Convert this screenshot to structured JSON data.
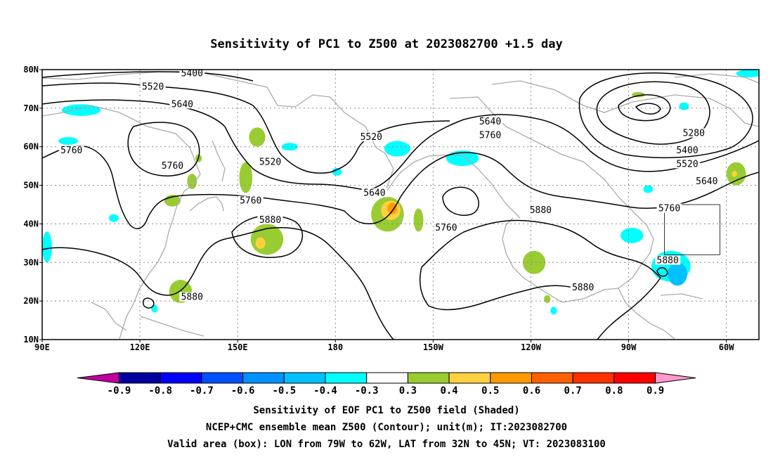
{
  "title": "Sensitivity of PC1 to Z500 at 2023082700 +1.5 day",
  "map": {
    "lon_range": [
      90,
      310
    ],
    "lat_range": [
      10,
      80
    ],
    "lat_labels": [
      "10N",
      "20N",
      "30N",
      "40N",
      "50N",
      "60N",
      "70N",
      "80N"
    ],
    "lon_labels": [
      "90E",
      "120E",
      "150E",
      "180",
      "150W",
      "120W",
      "90W",
      "60W"
    ],
    "grid": "dotted",
    "valid_box": {
      "lon_w": 281,
      "lon_e": 298,
      "lat_s": 32,
      "lat_n": 45
    }
  },
  "contour_labels": [
    {
      "text": "5400",
      "lon": 136,
      "lat": 79
    },
    {
      "text": "5520",
      "lon": 124,
      "lat": 75.5
    },
    {
      "text": "5640",
      "lon": 133,
      "lat": 71
    },
    {
      "text": "5760",
      "lon": 99,
      "lat": 59
    },
    {
      "text": "5760",
      "lon": 130,
      "lat": 55
    },
    {
      "text": "5520",
      "lon": 160,
      "lat": 56
    },
    {
      "text": "5520",
      "lon": 191,
      "lat": 62.5
    },
    {
      "text": "5640",
      "lon": 227.5,
      "lat": 66.5
    },
    {
      "text": "5760",
      "lon": 227.5,
      "lat": 63
    },
    {
      "text": "5640",
      "lon": 192,
      "lat": 48
    },
    {
      "text": "5760",
      "lon": 154,
      "lat": 46
    },
    {
      "text": "5880",
      "lon": 160,
      "lat": 41
    },
    {
      "text": "5760",
      "lon": 214,
      "lat": 39
    },
    {
      "text": "5880",
      "lon": 243,
      "lat": 43.5
    },
    {
      "text": "5280",
      "lon": 290,
      "lat": 63.5
    },
    {
      "text": "5400",
      "lon": 288,
      "lat": 59
    },
    {
      "text": "5520",
      "lon": 288,
      "lat": 55.5
    },
    {
      "text": "5640",
      "lon": 294,
      "lat": 51
    },
    {
      "text": "5760",
      "lon": 282.5,
      "lat": 44
    },
    {
      "text": "5880",
      "lon": 282,
      "lat": 30.5
    },
    {
      "text": "5880",
      "lon": 256,
      "lat": 23.5
    },
    {
      "text": "5880",
      "lon": 136,
      "lat": 21
    }
  ],
  "colorbar": {
    "labels": [
      "-0.9",
      "-0.8",
      "-0.7",
      "-0.6",
      "-0.5",
      "-0.4",
      "-0.3",
      "0.3",
      "0.4",
      "0.5",
      "0.6",
      "0.7",
      "0.8",
      "0.9"
    ],
    "colors": [
      "#0000a0",
      "#0000ff",
      "#0050ff",
      "#0090ff",
      "#00c0ff",
      "#00ffff",
      "#ffffff",
      "#99cc33",
      "#ffd040",
      "#ff9900",
      "#ff6000",
      "#ff3000",
      "#ff0000"
    ],
    "end_low": "#c000a0",
    "end_high": "#ff99cc"
  },
  "shading": [
    {
      "color": "#00ffff",
      "lon": 102,
      "lat": 69.5,
      "rx": 6,
      "ry": 1.5
    },
    {
      "color": "#00ffff",
      "lon": 98,
      "lat": 61.5,
      "rx": 3,
      "ry": 1
    },
    {
      "color": "#00ffff",
      "lon": 91.5,
      "lat": 34,
      "rx": 1.5,
      "ry": 4
    },
    {
      "color": "#00ffff",
      "lon": 112,
      "lat": 41.5,
      "rx": 1.5,
      "ry": 1
    },
    {
      "color": "#00ffff",
      "lon": 124.5,
      "lat": 18,
      "rx": 1,
      "ry": 1
    },
    {
      "color": "#00ffff",
      "lon": 166,
      "lat": 60,
      "rx": 2.5,
      "ry": 1
    },
    {
      "color": "#00ffff",
      "lon": 180.5,
      "lat": 53.5,
      "rx": 1.5,
      "ry": 1
    },
    {
      "color": "#00ffff",
      "lon": 199,
      "lat": 59.5,
      "rx": 4,
      "ry": 2
    },
    {
      "color": "#00ffff",
      "lon": 219,
      "lat": 57,
      "rx": 5,
      "ry": 2
    },
    {
      "color": "#00ffff",
      "lon": 247,
      "lat": 17.5,
      "rx": 1,
      "ry": 1
    },
    {
      "color": "#00ffff",
      "lon": 307,
      "lat": 79,
      "rx": 4,
      "ry": 1
    },
    {
      "color": "#00ffff",
      "lon": 287,
      "lat": 70.5,
      "rx": 1.5,
      "ry": 1
    },
    {
      "color": "#00ffff",
      "lon": 271,
      "lat": 37,
      "rx": 3.5,
      "ry": 2
    },
    {
      "color": "#00ffff",
      "lon": 283,
      "lat": 29,
      "rx": 6,
      "ry": 4
    },
    {
      "color": "#00c0ff",
      "lon": 285,
      "lat": 27,
      "rx": 3,
      "ry": 3
    },
    {
      "color": "#00ffff",
      "lon": 276,
      "lat": 49,
      "rx": 1.5,
      "ry": 1
    },
    {
      "color": "#99cc33",
      "lon": 156,
      "lat": 62.5,
      "rx": 2.5,
      "ry": 2.5
    },
    {
      "color": "#99cc33",
      "lon": 152.5,
      "lat": 52,
      "rx": 2,
      "ry": 4
    },
    {
      "color": "#99cc33",
      "lon": 138,
      "lat": 57,
      "rx": 1,
      "ry": 1
    },
    {
      "color": "#99cc33",
      "lon": 136,
      "lat": 51,
      "rx": 1.5,
      "ry": 2
    },
    {
      "color": "#99cc33",
      "lon": 130,
      "lat": 46,
      "rx": 2.5,
      "ry": 1.5
    },
    {
      "color": "#99cc33",
      "lon": 132.5,
      "lat": 22.5,
      "rx": 3.5,
      "ry": 3
    },
    {
      "color": "#99cc33",
      "lon": 159,
      "lat": 36,
      "rx": 5,
      "ry": 4
    },
    {
      "color": "#ffd040",
      "lon": 157,
      "lat": 35,
      "rx": 1.5,
      "ry": 1.5
    },
    {
      "color": "#99cc33",
      "lon": 196,
      "lat": 42.5,
      "rx": 5,
      "ry": 4.5
    },
    {
      "color": "#ffd040",
      "lon": 197,
      "lat": 43.5,
      "rx": 3,
      "ry": 2.5
    },
    {
      "color": "#ff9900",
      "lon": 197.5,
      "lat": 44,
      "rx": 1.5,
      "ry": 1.5
    },
    {
      "color": "#99cc33",
      "lon": 205.5,
      "lat": 41,
      "rx": 1.5,
      "ry": 3
    },
    {
      "color": "#99cc33",
      "lon": 241,
      "lat": 30,
      "rx": 3.5,
      "ry": 3
    },
    {
      "color": "#99cc33",
      "lon": 245,
      "lat": 20.5,
      "rx": 1,
      "ry": 1
    },
    {
      "color": "#99cc33",
      "lon": 273,
      "lat": 73.5,
      "rx": 2,
      "ry": 0.7
    },
    {
      "color": "#99cc33",
      "lon": 303,
      "lat": 53,
      "rx": 3,
      "ry": 3
    },
    {
      "color": "#ffd040",
      "lon": 302.5,
      "lat": 53,
      "rx": 0.8,
      "ry": 0.8
    }
  ],
  "footer": [
    "Sensitivity of EOF PC1 to Z500 field (Shaded)",
    "NCEP+CMC ensemble mean Z500 (Contour); unit(m); IT:2023082700",
    "Valid area (box): LON from 79W to 62W, LAT from 32N to 45N; VT: 2023083100"
  ]
}
